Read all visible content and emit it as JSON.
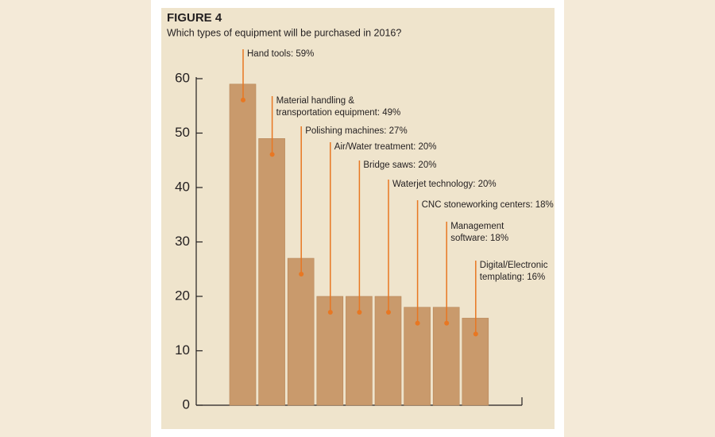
{
  "chart_data": {
    "type": "bar",
    "title": "FIGURE 4",
    "subtitle": "Which types of equipment will be purchased in 2016?",
    "values": [
      59,
      49,
      27,
      20,
      20,
      20,
      18,
      18,
      16
    ],
    "value_labels": [
      [
        "Hand tools: 59%"
      ],
      [
        "Material handling &",
        "transportation equipment: 49%"
      ],
      [
        "Polishing machines: 27%"
      ],
      [
        "Air/Water treatment: 20%"
      ],
      [
        "Bridge saws: 20%"
      ],
      [
        "Waterjet technology: 20%"
      ],
      [
        "CNC stoneworking centers: 18%"
      ],
      [
        "Management",
        "software: 18%"
      ],
      [
        "Digital/Electronic",
        "templating: 16%"
      ]
    ],
    "color": "#c99a6c",
    "annotation_color": "#e87722",
    "ylim": [
      0,
      60
    ],
    "yticks": [
      0,
      10,
      20,
      30,
      40,
      50,
      60
    ],
    "grid": false
  }
}
